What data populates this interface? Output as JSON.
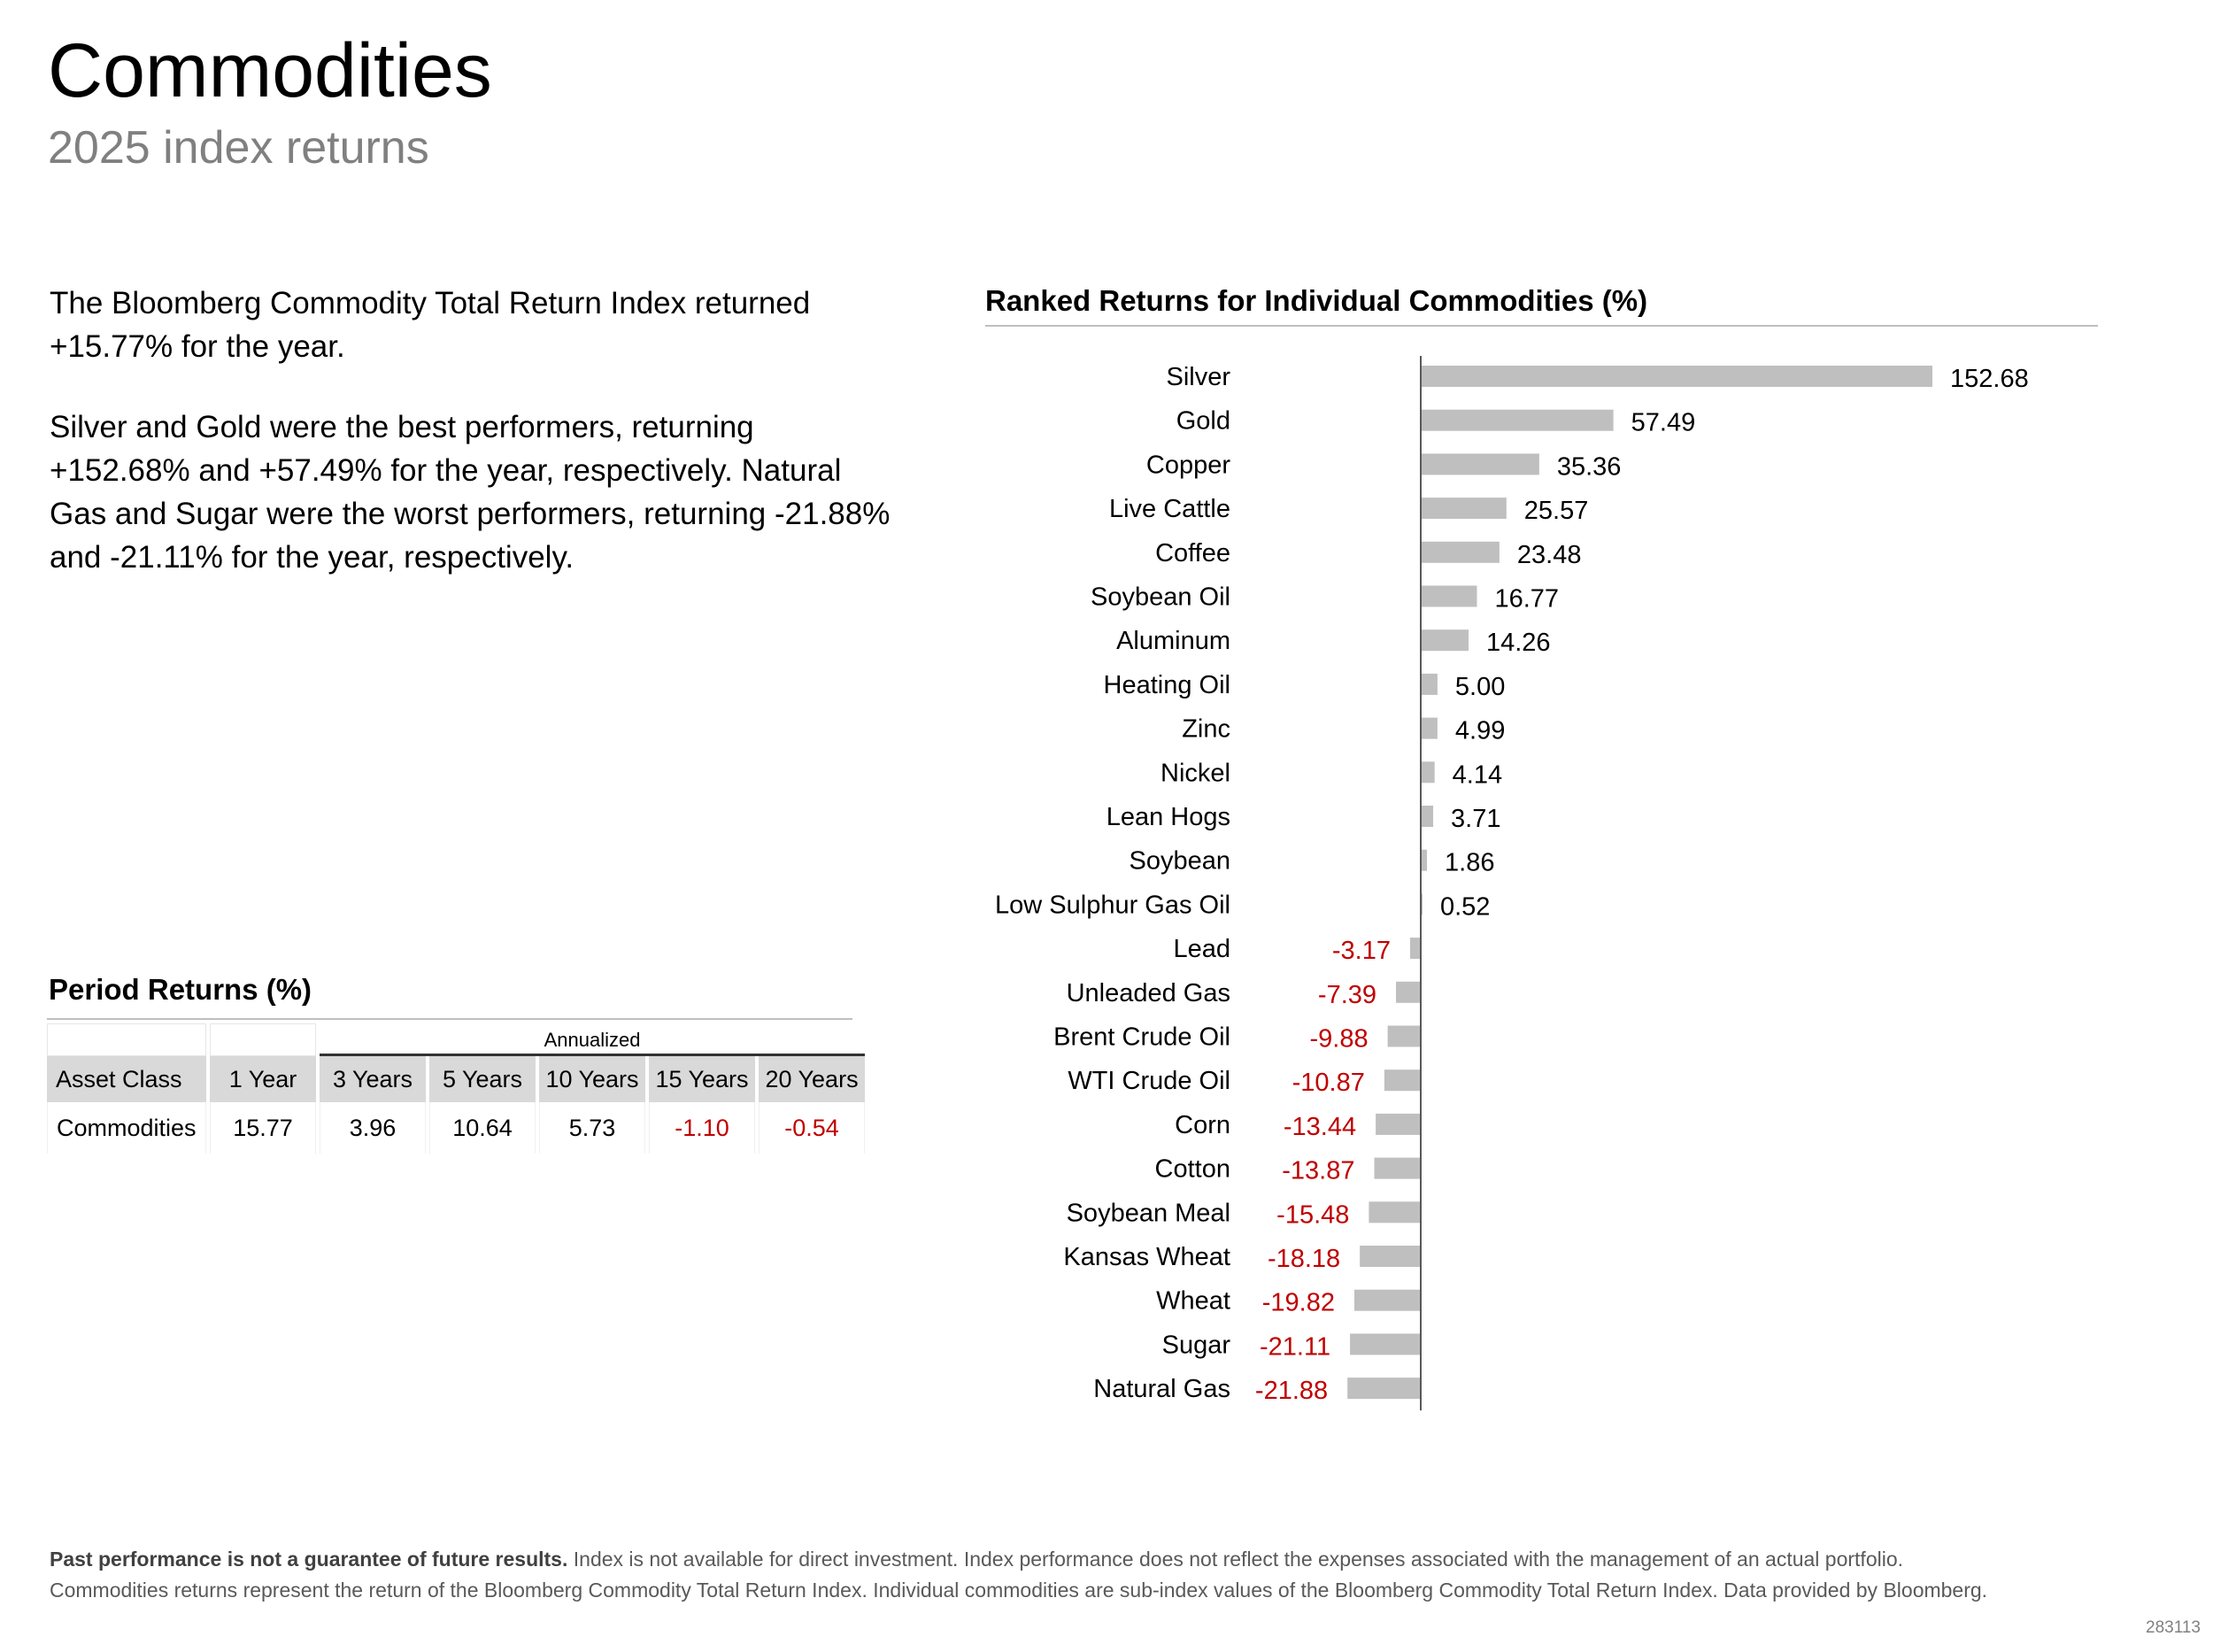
{
  "title": "Commodities",
  "subtitle": "2025 index returns",
  "summary": {
    "paragraph1": "The Bloomberg Commodity Total Return Index returned +15.77% for the year.",
    "paragraph2": "Silver and Gold were the best performers, returning +152.68% and +57.49% for the year, respectively. Natural Gas and Sugar were the worst performers, returning -21.88% and -21.11% for the year, respectively."
  },
  "period_returns": {
    "title": "Period Returns (%)",
    "annualized_label": "Annualized",
    "headers": [
      "Asset Class",
      "1 Year",
      "3 Years",
      "5 Years",
      "10 Years",
      "15 Years",
      "20 Years"
    ],
    "row": [
      "Commodities",
      "15.77",
      "3.96",
      "10.64",
      "5.73",
      "-1.10",
      "-0.54"
    ]
  },
  "colors": {
    "bar": "#bfbfbf",
    "negative": "#c00000",
    "axis": "#595959",
    "subtitle": "#808080"
  },
  "chart_data": {
    "type": "bar",
    "orientation": "horizontal",
    "title": "Ranked Returns for Individual Commodities (%)",
    "categories": [
      "Silver",
      "Gold",
      "Copper",
      "Live Cattle",
      "Coffee",
      "Soybean Oil",
      "Aluminum",
      "Heating Oil",
      "Zinc",
      "Nickel",
      "Lean Hogs",
      "Soybean",
      "Low Sulphur Gas Oil",
      "Lead",
      "Unleaded Gas",
      "Brent Crude Oil",
      "WTI Crude Oil",
      "Corn",
      "Cotton",
      "Soybean Meal",
      "Kansas Wheat",
      "Wheat",
      "Sugar",
      "Natural Gas"
    ],
    "values": [
      152.68,
      57.49,
      35.36,
      25.57,
      23.48,
      16.77,
      14.26,
      5.0,
      4.99,
      4.14,
      3.71,
      1.86,
      0.52,
      -3.17,
      -7.39,
      -9.88,
      -10.87,
      -13.44,
      -13.87,
      -15.48,
      -18.18,
      -19.82,
      -21.11,
      -21.88
    ],
    "labels": [
      "152.68",
      "57.49",
      "35.36",
      "25.57",
      "23.48",
      "16.77",
      "14.26",
      "5.00",
      "4.99",
      "4.14",
      "3.71",
      "1.86",
      "0.52",
      "-3.17",
      "-7.39",
      "-9.88",
      "-10.87",
      "-13.44",
      "-13.87",
      "-15.48",
      "-18.18",
      "-19.82",
      "-21.11",
      "-21.88"
    ],
    "xlim": [
      -22,
      153
    ],
    "grid": false,
    "legend": "none"
  },
  "footnote": {
    "bold": "Past performance is not a guarantee of future results.",
    "line1": " Index is not available for direct investment. Index performance does not reflect the expenses associated with the management of an actual portfolio.",
    "line2": "Commodities returns represent the return of the Bloomberg Commodity Total Return Index. Individual commodities are sub-index values of the Bloomberg Commodity Total Return Index. Data provided by Bloomberg."
  },
  "code": "283113"
}
